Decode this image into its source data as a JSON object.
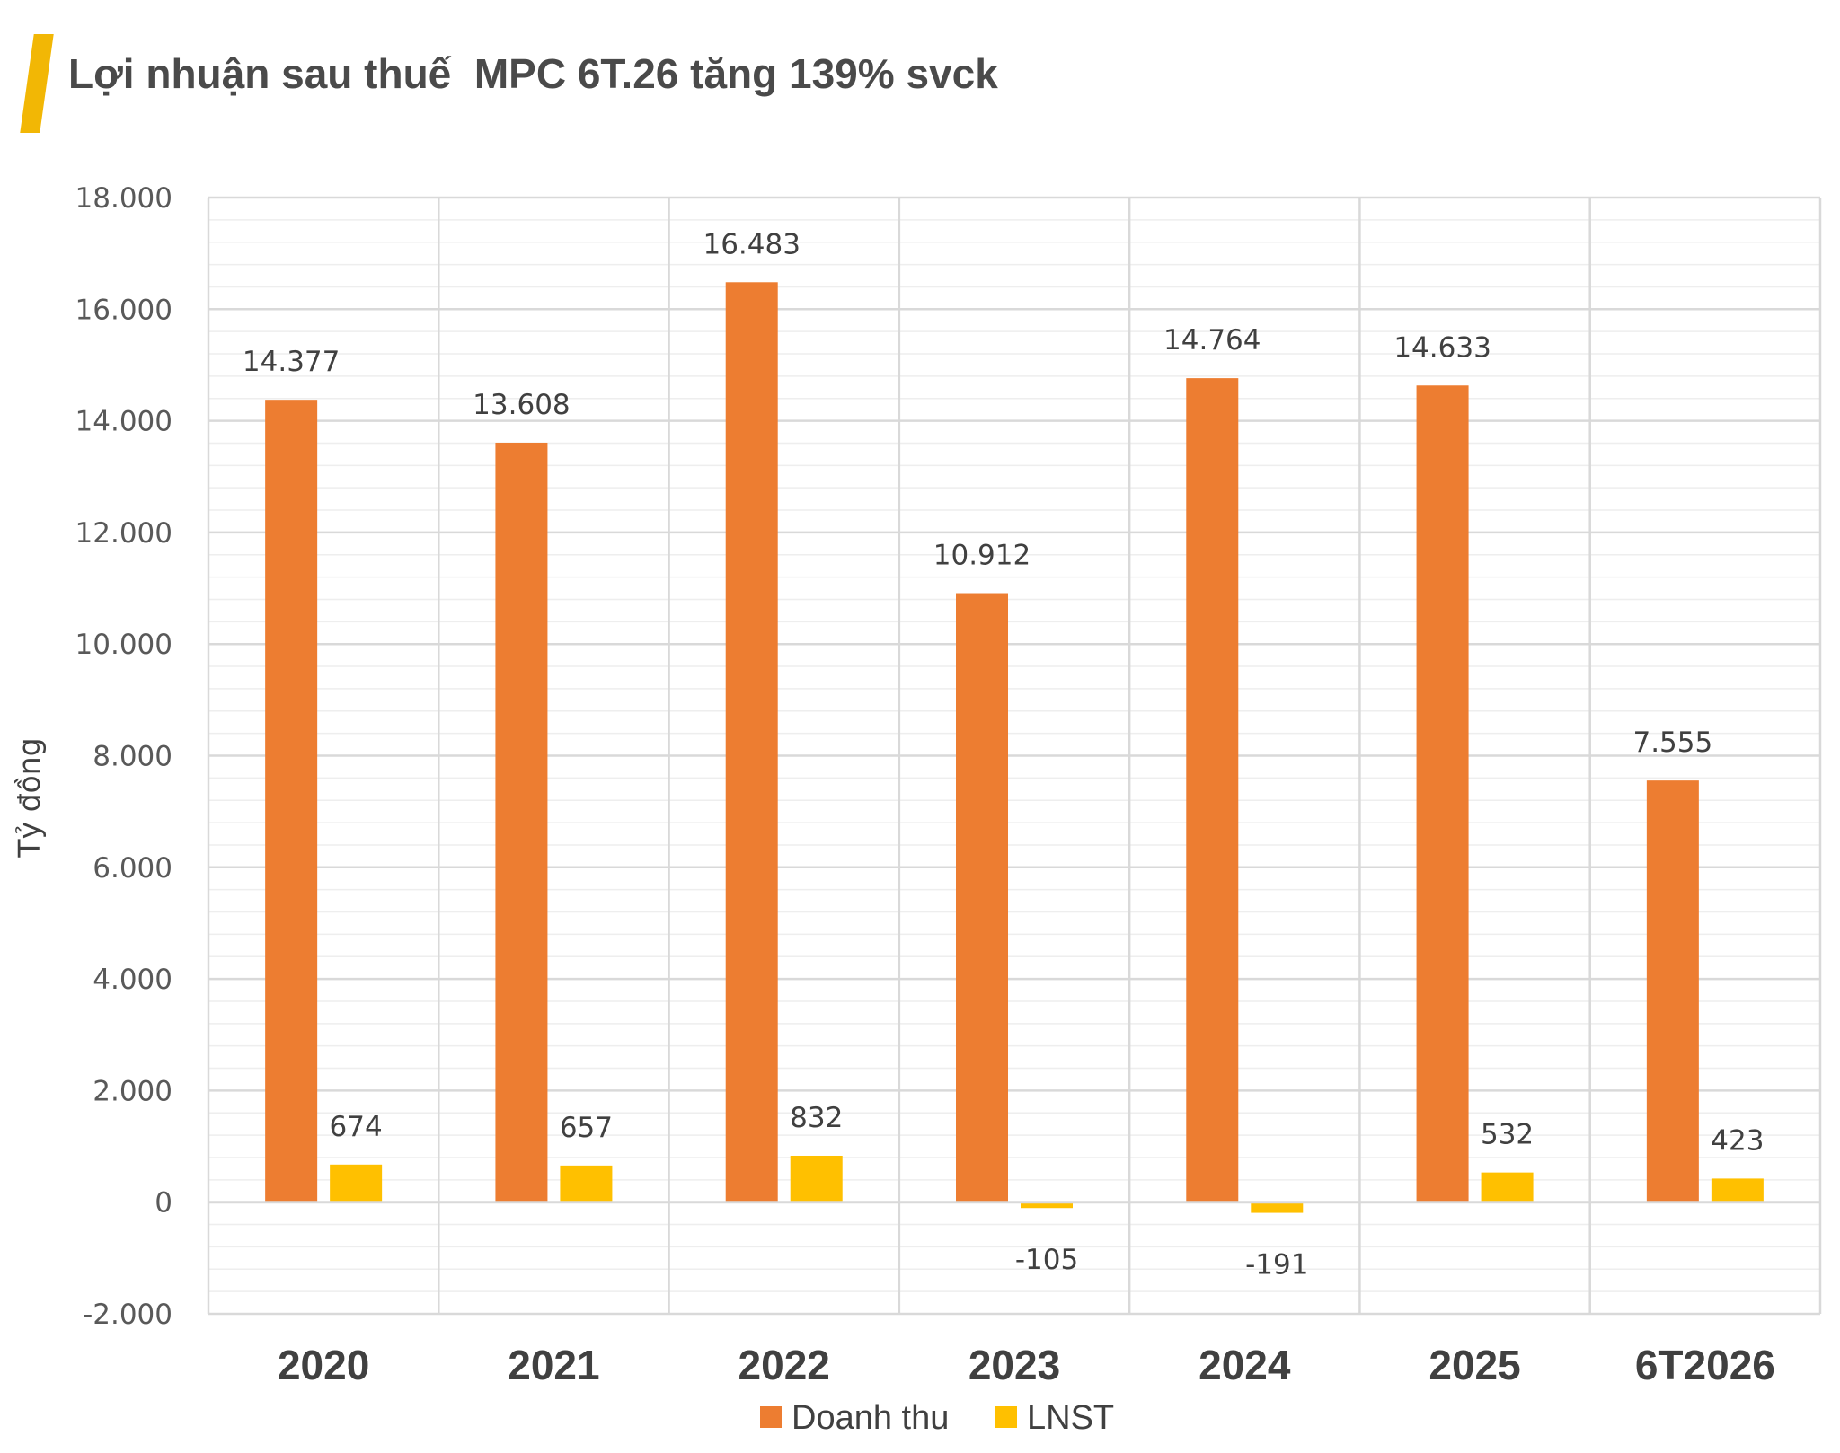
{
  "header": {
    "title": "Lợi nhuận sau thuế  MPC 6T.26 tăng 139% svck",
    "accent_color": "#f2b705"
  },
  "chart_data": {
    "type": "bar",
    "title": "Lợi nhuận sau thuế  MPC 6T.26 tăng 139% svck",
    "xlabel": "",
    "ylabel": "Tỷ đồng",
    "categories": [
      "2020",
      "2021",
      "2022",
      "2023",
      "2024",
      "2025",
      "6T2026"
    ],
    "series": [
      {
        "name": "Doanh thu",
        "color": "#ed7d31",
        "values": [
          14377,
          13608,
          16483,
          10912,
          14764,
          14633,
          7555
        ],
        "labels": [
          "14.377",
          "13.608",
          "16.483",
          "10.912",
          "14.764",
          "14.633",
          "7.555"
        ]
      },
      {
        "name": "LNST",
        "color": "#ffc000",
        "values": [
          674,
          657,
          832,
          -105,
          -191,
          532,
          423
        ],
        "labels": [
          "674",
          "657",
          "832",
          "-105",
          "-191",
          "532",
          "423"
        ]
      }
    ],
    "ylim": [
      -2000,
      18000
    ],
    "yticks": [
      -2000,
      0,
      2000,
      4000,
      6000,
      8000,
      10000,
      12000,
      14000,
      16000,
      18000
    ],
    "ytick_labels": [
      "-2.000",
      "0",
      "2.000",
      "4.000",
      "6.000",
      "8.000",
      "10.000",
      "12.000",
      "14.000",
      "16.000",
      "18.000"
    ],
    "minor_gridlines": true,
    "legend_position": "bottom-center"
  }
}
